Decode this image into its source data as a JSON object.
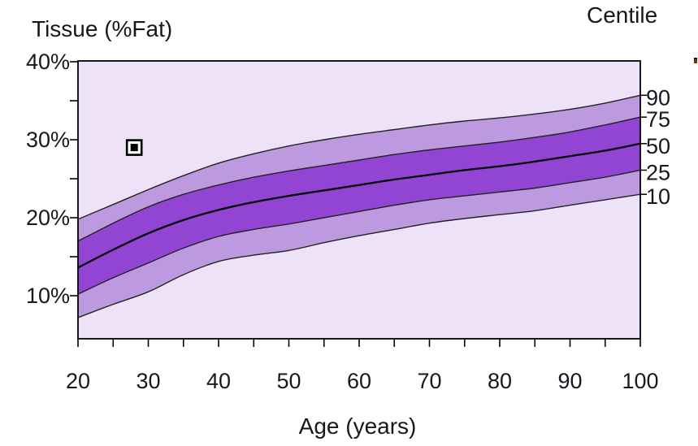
{
  "chart_data": {
    "type": "area",
    "description": "Centile reference bands of body tissue percent fat by age, with one plotted subject marker",
    "x_axis": {
      "label": "Age (years)",
      "min": 20,
      "max": 100,
      "major_ticks": [
        20,
        30,
        40,
        50,
        60,
        70,
        80,
        90,
        100
      ],
      "major_tick_labels": [
        "20",
        "30",
        "40",
        "50",
        "60",
        "70",
        "80",
        "90",
        "100"
      ],
      "minor_tick_step": 5
    },
    "y_axis": {
      "label": "Tissue (%Fat)",
      "min": 4.5,
      "max": 40,
      "major_ticks": [
        40,
        30,
        20,
        10
      ],
      "major_tick_labels": [
        "40%",
        "30%",
        "20%",
        "10%"
      ],
      "minor_ticks": [
        35,
        25,
        15
      ]
    },
    "right_axis": {
      "label": "Centile",
      "tick_labels": [
        "90",
        "75",
        "50",
        "25",
        "10"
      ]
    },
    "x": [
      20,
      25,
      30,
      35,
      40,
      45,
      50,
      55,
      60,
      65,
      70,
      75,
      80,
      85,
      90,
      95,
      100
    ],
    "series": [
      {
        "name": "90",
        "values": [
          19.8,
          21.7,
          23.6,
          25.4,
          27.0,
          28.2,
          29.2,
          30.0,
          30.7,
          31.3,
          31.9,
          32.4,
          32.8,
          33.3,
          33.9,
          34.7,
          35.7
        ]
      },
      {
        "name": "75",
        "values": [
          17.0,
          19.3,
          21.4,
          23.0,
          24.2,
          25.2,
          26.0,
          26.7,
          27.4,
          28.1,
          28.7,
          29.2,
          29.7,
          30.3,
          31.0,
          31.9,
          32.9
        ]
      },
      {
        "name": "50",
        "values": [
          13.6,
          15.9,
          18.0,
          19.7,
          21.0,
          22.0,
          22.8,
          23.5,
          24.2,
          24.9,
          25.5,
          26.1,
          26.6,
          27.2,
          27.9,
          28.6,
          29.5
        ]
      },
      {
        "name": "25",
        "values": [
          10.2,
          12.3,
          14.2,
          16.1,
          17.6,
          18.5,
          19.2,
          20.0,
          20.8,
          21.6,
          22.3,
          22.8,
          23.3,
          23.8,
          24.5,
          25.2,
          26.1
        ]
      },
      {
        "name": "10",
        "values": [
          7.2,
          8.9,
          10.5,
          12.7,
          14.4,
          15.2,
          15.8,
          16.8,
          17.7,
          18.5,
          19.3,
          19.9,
          20.4,
          20.9,
          21.6,
          22.3,
          23.0
        ]
      }
    ],
    "bands": [
      {
        "lower": "10",
        "upper": "90",
        "color": "#bd9adf"
      },
      {
        "lower": "25",
        "upper": "75",
        "color": "#9245d2"
      }
    ],
    "median_series": "50",
    "marker": {
      "age": 28,
      "percent_fat": 29,
      "style": "black-square-in-white-square"
    },
    "legend_position": "right",
    "grid": "off",
    "colors": {
      "plot_background": "#ede2f7",
      "band_outer": "#bd9adf",
      "band_inner": "#9245d2",
      "centile_curve_line": "#222222",
      "median_line": "#000000",
      "axis_line": "#000000",
      "text": "#17171f"
    }
  }
}
